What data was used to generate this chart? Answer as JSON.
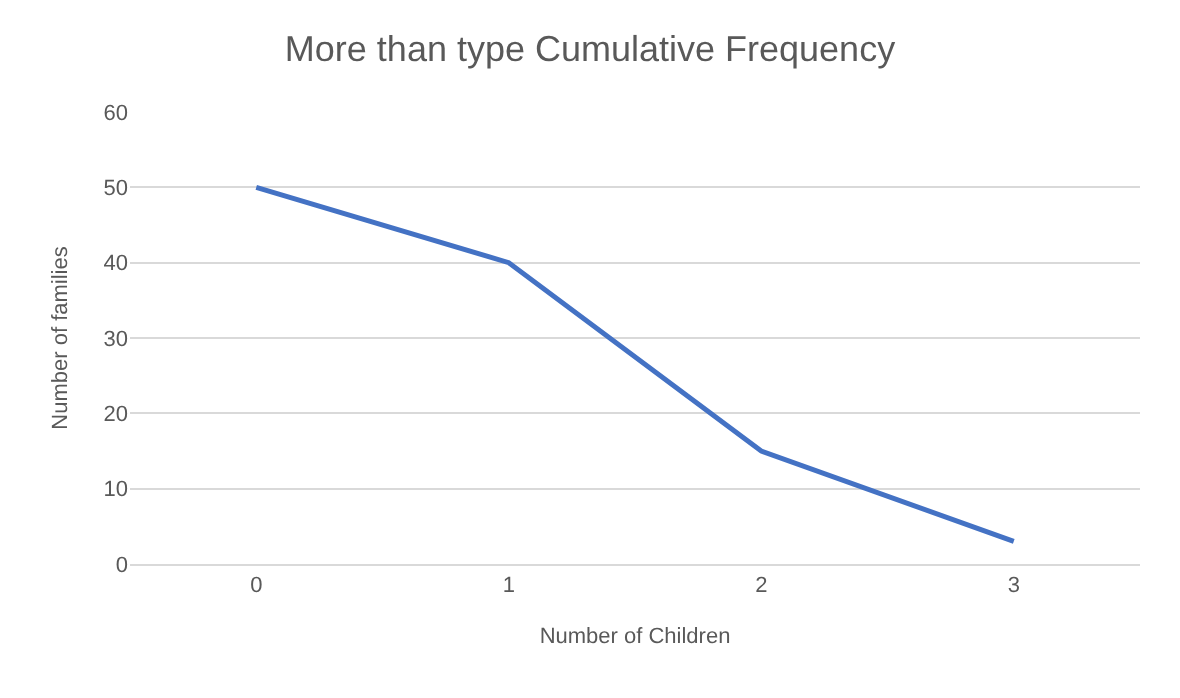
{
  "chart_data": {
    "type": "line",
    "title": "More than type Cumulative Frequency",
    "xlabel": "Number of Children",
    "ylabel": "Number of families",
    "categories": [
      "0",
      "1",
      "2",
      "3"
    ],
    "series": [
      {
        "color": "#4472c4",
        "values": [
          50,
          40,
          15,
          3
        ]
      }
    ],
    "ylim": [
      0,
      60
    ],
    "yticks": [
      0,
      10,
      20,
      30,
      40,
      50,
      60
    ],
    "grid": "y",
    "marker": "none",
    "line_style": "solid"
  }
}
